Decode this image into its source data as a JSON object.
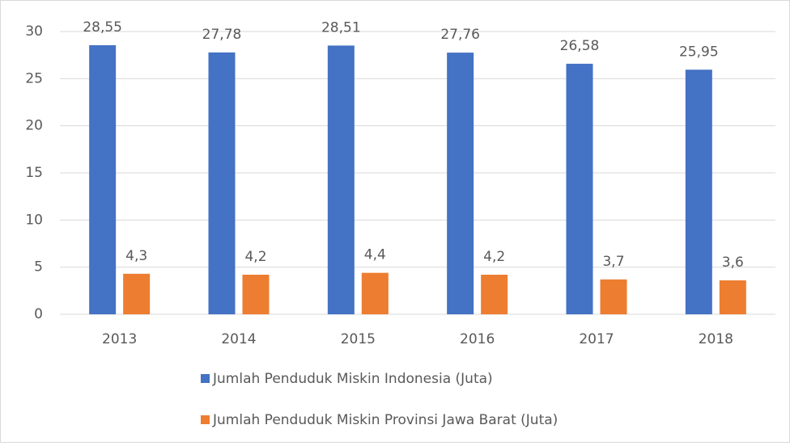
{
  "chart_data": {
    "type": "bar",
    "categories": [
      "2013",
      "2014",
      "2015",
      "2016",
      "2017",
      "2018"
    ],
    "series": [
      {
        "name": "Jumlah Penduduk Miskin Indonesia (Juta)",
        "color": "#4472c4",
        "values": [
          28.55,
          27.78,
          28.51,
          27.76,
          26.58,
          25.95
        ],
        "value_labels": [
          "28,55",
          "27,78",
          "28,51",
          "27,76",
          "26,58",
          "25,95"
        ]
      },
      {
        "name": "Jumlah Penduduk Miskin Provinsi Jawa Barat (Juta)",
        "color": "#ed7d31",
        "values": [
          4.3,
          4.2,
          4.4,
          4.2,
          3.7,
          3.6
        ],
        "value_labels": [
          "4,3",
          "4,2",
          "4,4",
          "4,2",
          "3,7",
          "3,6"
        ]
      }
    ],
    "ylim": [
      0,
      30
    ],
    "yticks": [
      0,
      5,
      10,
      15,
      20,
      25,
      30
    ],
    "grid": true,
    "legend": "bottom"
  }
}
